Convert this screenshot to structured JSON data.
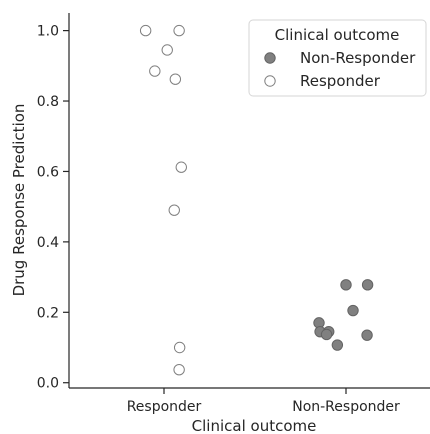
{
  "chart_data": {
    "type": "scatter",
    "title": "",
    "xlabel": "Clinical outcome",
    "ylabel": "Drug Response Prediction",
    "categories": [
      "Responder",
      "Non-Responder"
    ],
    "ylim": [
      -0.015,
      1.05
    ],
    "yticks": [
      0.0,
      0.2,
      0.4,
      0.6,
      0.8,
      1.0
    ],
    "ytick_labels": [
      "0.0",
      "0.2",
      "0.4",
      "0.6",
      "0.8",
      "1.0"
    ],
    "grid": false,
    "legend": {
      "title": "Clinical outcome",
      "placement": "top-right",
      "entries": [
        "Non-Responder",
        "Responder"
      ]
    },
    "series": [
      {
        "name": "Non-Responder",
        "color": "#808080",
        "fill": "filled",
        "points": [
          {
            "category": "Non-Responder",
            "jitter": 0.0,
            "y": 0.278
          },
          {
            "category": "Non-Responder",
            "jitter": 0.4,
            "y": 0.278
          },
          {
            "category": "Non-Responder",
            "jitter": 0.13,
            "y": 0.205
          },
          {
            "category": "Non-Responder",
            "jitter": -0.5,
            "y": 0.17
          },
          {
            "category": "Non-Responder",
            "jitter": -0.48,
            "y": 0.145
          },
          {
            "category": "Non-Responder",
            "jitter": -0.32,
            "y": 0.145
          },
          {
            "category": "Non-Responder",
            "jitter": -0.36,
            "y": 0.137
          },
          {
            "category": "Non-Responder",
            "jitter": 0.39,
            "y": 0.135
          },
          {
            "category": "Non-Responder",
            "jitter": -0.16,
            "y": 0.107
          }
        ]
      },
      {
        "name": "Responder",
        "color": "#808080",
        "fill": "hollow",
        "points": [
          {
            "category": "Responder",
            "jitter": -0.34,
            "y": 1.0
          },
          {
            "category": "Responder",
            "jitter": 0.28,
            "y": 1.0
          },
          {
            "category": "Responder",
            "jitter": 0.06,
            "y": 0.945
          },
          {
            "category": "Responder",
            "jitter": -0.17,
            "y": 0.885
          },
          {
            "category": "Responder",
            "jitter": 0.21,
            "y": 0.862
          },
          {
            "category": "Responder",
            "jitter": 0.32,
            "y": 0.612
          },
          {
            "category": "Responder",
            "jitter": 0.19,
            "y": 0.49
          },
          {
            "category": "Responder",
            "jitter": 0.29,
            "y": 0.1
          },
          {
            "category": "Responder",
            "jitter": 0.28,
            "y": 0.037
          }
        ]
      }
    ]
  }
}
